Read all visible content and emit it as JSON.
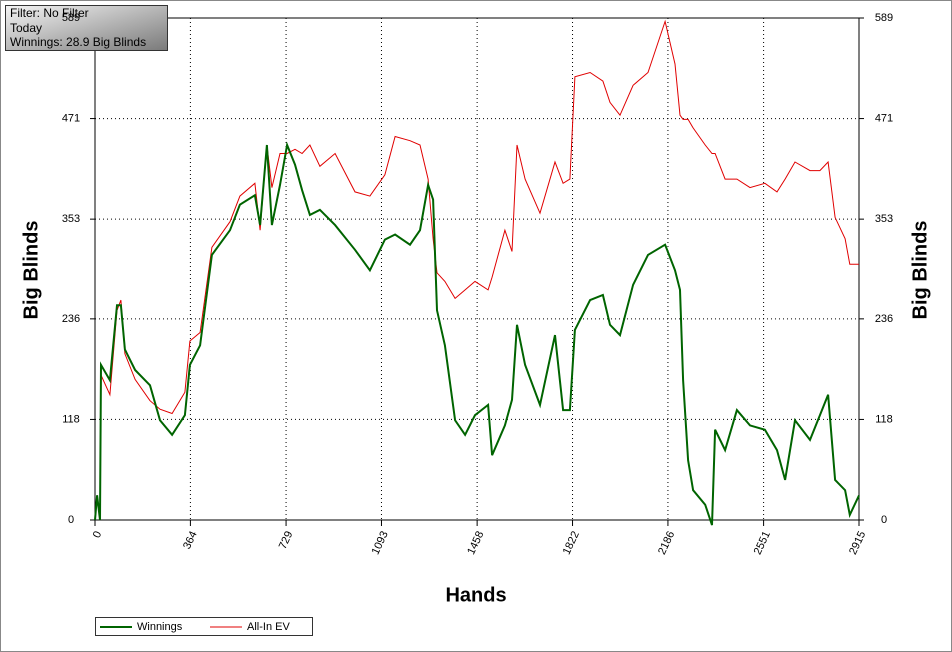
{
  "chart_data": {
    "type": "line",
    "annotations": [
      "Filter: No Filter",
      "Today",
      "Winnings: 28.9 Big Blinds"
    ],
    "xlabel": "Hands",
    "ylabel": "Big Blinds",
    "y2label": "Big Blinds",
    "xlim": [
      0,
      2915
    ],
    "xticks": [
      0,
      364,
      729,
      1093,
      1458,
      1822,
      2186,
      2551,
      2915
    ],
    "ylim": [
      0,
      589
    ],
    "yticks": [
      0,
      118,
      236,
      353,
      471,
      589
    ],
    "y2lim": [
      0,
      589
    ],
    "y2ticks": [
      0,
      118,
      236,
      353,
      471,
      589
    ],
    "grid": true,
    "legend": "bottom-left",
    "x": [
      0,
      8,
      19,
      23,
      57,
      84,
      99,
      114,
      153,
      210,
      248,
      294,
      343,
      362,
      401,
      446,
      515,
      553,
      610,
      630,
      656,
      675,
      706,
      733,
      763,
      790,
      820,
      858,
      916,
      992,
      1049,
      1106,
      1145,
      1202,
      1240,
      1271,
      1290,
      1305,
      1335,
      1374,
      1412,
      1450,
      1500,
      1515,
      1564,
      1591,
      1610,
      1641,
      1698,
      1755,
      1786,
      1812,
      1831,
      1889,
      1938,
      1965,
      2003,
      2053,
      2110,
      2175,
      2213,
      2232,
      2244,
      2263,
      2282,
      2328,
      2354,
      2366,
      2404,
      2449,
      2499,
      2556,
      2602,
      2633,
      2671,
      2728,
      2766,
      2797,
      2824,
      2862,
      2880,
      2915
    ],
    "series": [
      {
        "name": "Winnings",
        "color": "#006400",
        "values": [
          0,
          29,
          0,
          182,
          164,
          252,
          252,
          200,
          176,
          158,
          117,
          100,
          123,
          182,
          205,
          311,
          340,
          370,
          381,
          346,
          440,
          346,
          393,
          440,
          417,
          387,
          358,
          364,
          346,
          317,
          293,
          329,
          335,
          323,
          340,
          393,
          376,
          246,
          205,
          117,
          100,
          123,
          135,
          76,
          111,
          141,
          229,
          182,
          135,
          217,
          129,
          129,
          223,
          258,
          264,
          229,
          217,
          276,
          311,
          323,
          293,
          270,
          164,
          70,
          35,
          18,
          -6,
          106,
          82,
          129,
          111,
          106,
          82,
          47,
          117,
          94,
          123,
          147,
          47,
          35,
          6,
          28.9
        ]
      },
      {
        "name": "All-In EV",
        "color": "#e00000",
        "values": [
          0,
          29,
          0,
          170,
          147,
          246,
          258,
          195,
          165,
          140,
          130,
          125,
          150,
          210,
          220,
          320,
          350,
          380,
          395,
          340,
          440,
          390,
          430,
          430,
          435,
          430,
          440,
          415,
          430,
          385,
          380,
          405,
          450,
          445,
          440,
          400,
          330,
          290,
          280,
          260,
          270,
          280,
          270,
          285,
          340,
          315,
          440,
          400,
          360,
          420,
          395,
          400,
          520,
          525,
          515,
          490,
          475,
          510,
          525,
          585,
          535,
          475,
          470,
          470,
          460,
          440,
          430,
          430,
          400,
          400,
          390,
          395,
          385,
          400,
          420,
          410,
          410,
          420,
          355,
          330,
          300,
          300
        ]
      }
    ]
  }
}
